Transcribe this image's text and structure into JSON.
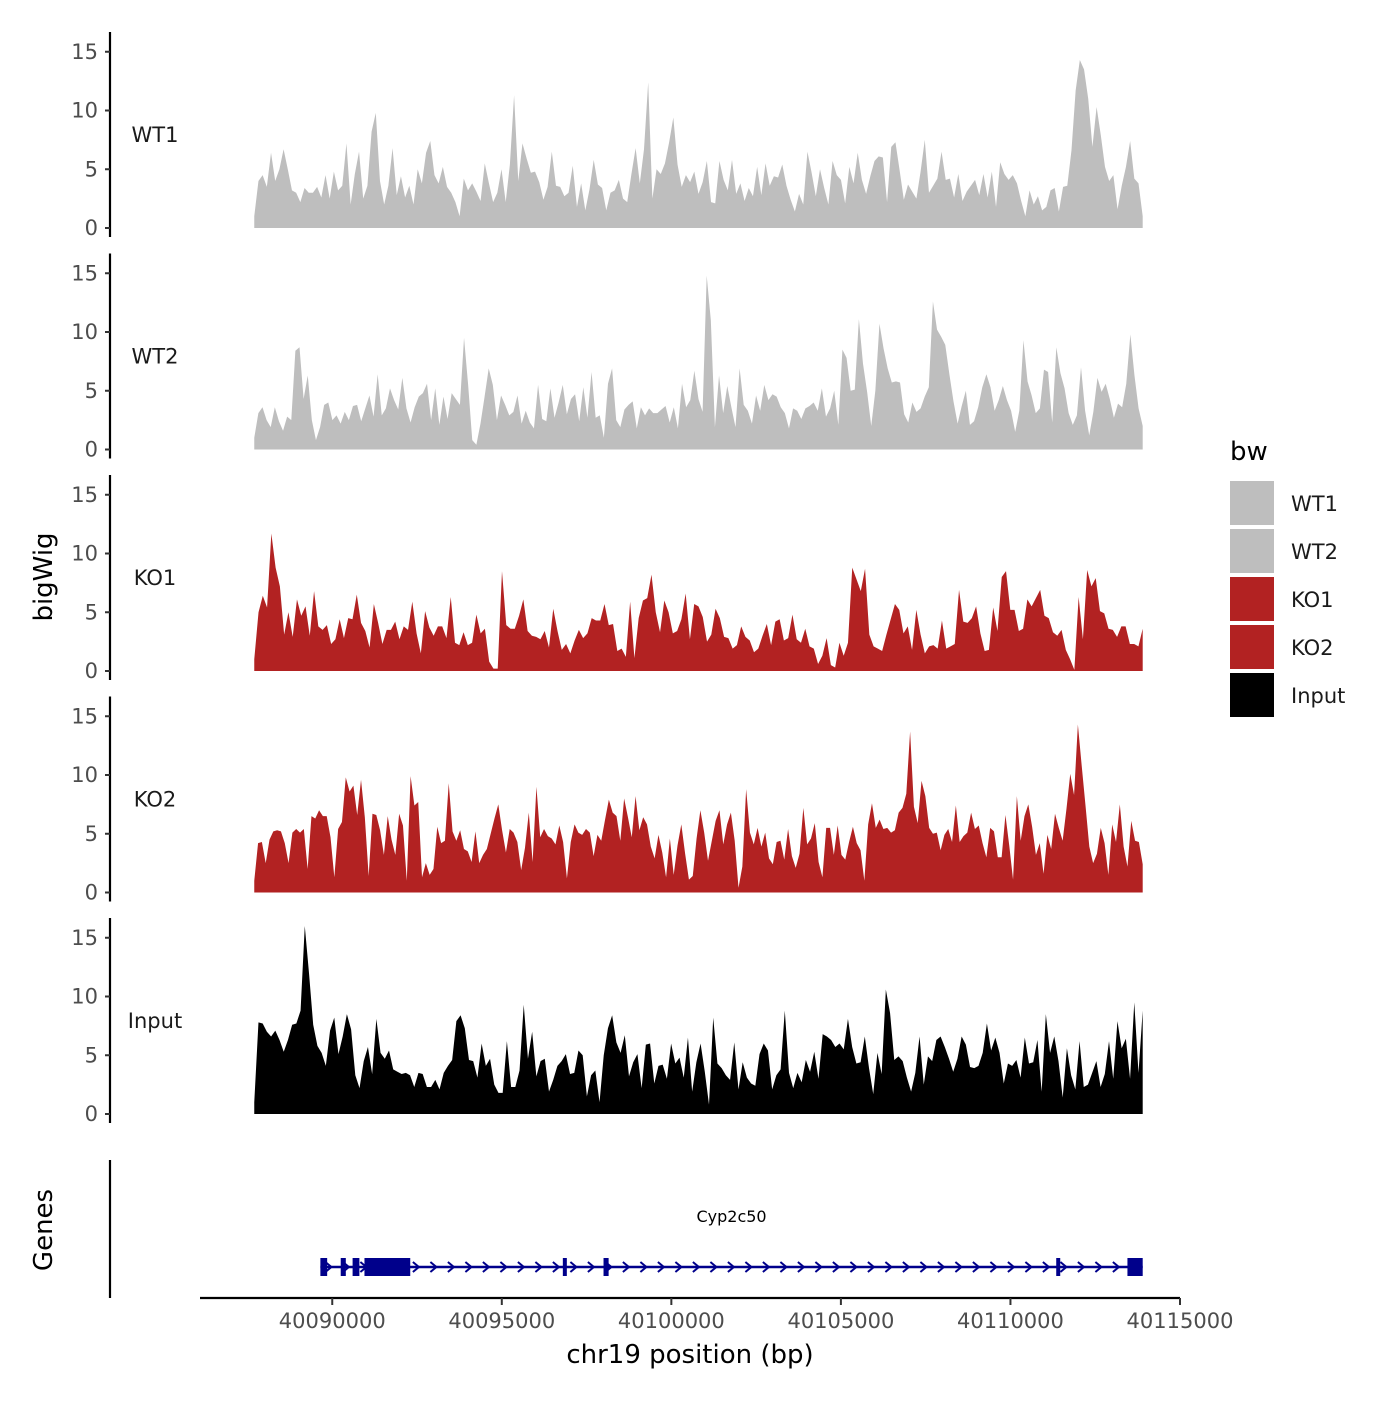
{
  "chart_data": {
    "type": "area",
    "subtype": "genome-browser-tracks",
    "title": "",
    "xlabel": "chr19 position (bp)",
    "ylabel": "bigWig",
    "gene_panel_label": "Genes",
    "xlim": [
      40086100,
      40115000
    ],
    "x_ticks": [
      40090000,
      40095000,
      40100000,
      40105000,
      40110000,
      40115000
    ],
    "x_tick_labels": [
      "40090000",
      "40095000",
      "40100000",
      "40105000",
      "40110000",
      "40115000"
    ],
    "ylim": [
      0,
      16
    ],
    "y_ticks": [
      0,
      5,
      10,
      15
    ],
    "y_tick_labels": [
      "0",
      "5",
      "10",
      "15"
    ],
    "data_range": [
      40087700,
      40113900
    ],
    "legend": {
      "title": "bw",
      "position": "right",
      "entries": [
        {
          "label": "WT1",
          "color": "#bebebe"
        },
        {
          "label": "WT2",
          "color": "#bebebe"
        },
        {
          "label": "KO1",
          "color": "#b22222"
        },
        {
          "label": "KO2",
          "color": "#b22222"
        },
        {
          "label": "Input",
          "color": "#000000"
        }
      ]
    },
    "series": [
      {
        "name": "WT1",
        "color": "#bebebe",
        "values": [
          1,
          4,
          4.5,
          3.5,
          6.4,
          4,
          5,
          6.7,
          5,
          3.2,
          3,
          2.2,
          3.4,
          3,
          3,
          3.5,
          2.6,
          4.5,
          2.5,
          4.8,
          3.2,
          3.6,
          7.2,
          2,
          4.6,
          6.5,
          2.5,
          3.6,
          8.2,
          9.8,
          4,
          2,
          3.6,
          6.8,
          2.8,
          4.4,
          2.6,
          3.6,
          2,
          5,
          3.8,
          6.4,
          7.4,
          4.5,
          3.8,
          5.2,
          3.5,
          3,
          2.2,
          1,
          4.2,
          3.2,
          3.8,
          3.1,
          2.3,
          5.5,
          3.8,
          2.2,
          3,
          5,
          2.2,
          5.4,
          11.3,
          4,
          7.2,
          5.9,
          4.7,
          4.8,
          3.9,
          2.4,
          3.5,
          6.5,
          3.6,
          3.5,
          2.7,
          3,
          5.3,
          1.8,
          3.8,
          1.5,
          3.3,
          5.8,
          3.7,
          3.4,
          1.5,
          3,
          3.2,
          4.1,
          2.5,
          2.2,
          4.6,
          6.8,
          3.8,
          6.7,
          12.4,
          2.5,
          5,
          4.6,
          5.5,
          7.3,
          9.4,
          5.4,
          3.5,
          4.5,
          3.9,
          4.8,
          2.9,
          3.9,
          5.7,
          2.2,
          2.1,
          5.7,
          4.1,
          3.2,
          5.8,
          2.9,
          3.8,
          2.3,
          3.4,
          2.7,
          5.2,
          2.8,
          5.5,
          3.6,
          4.4,
          4.3,
          5.4,
          3.6,
          2.4,
          1.4,
          2.9,
          2,
          6.5,
          4.7,
          2.7,
          5,
          3.4,
          2,
          5.7,
          4.5,
          4.1,
          2.1,
          5.2,
          3.8,
          6.4,
          4.1,
          2.9,
          4.4,
          5.7,
          6.1,
          6,
          2.2,
          6.9,
          7.3,
          4.9,
          2.4,
          3.7,
          3.1,
          2.5,
          4.8,
          7.5,
          3,
          3.6,
          4.2,
          6.5,
          4.1,
          4.2,
          2.6,
          4.6,
          2.3,
          3.1,
          3.6,
          4.1,
          2.8,
          4.6,
          2.6,
          4.8,
          1.8,
          5.6,
          4.6,
          4.1,
          4.5,
          3.8,
          2.3,
          1,
          3.2,
          2,
          2.7,
          1.5,
          1.8,
          3.2,
          3.4,
          1.4,
          3.5,
          3.6,
          6.6,
          11.7,
          14.3,
          13.5,
          11,
          6.9,
          10.3,
          7.9,
          5.2,
          4,
          4.5,
          1.6,
          3.6,
          5.2,
          7.4,
          4.2,
          3.8,
          1
        ]
      },
      {
        "name": "WT2",
        "color": "#bebebe",
        "values": [
          1,
          3.1,
          3.6,
          2.5,
          1.9,
          3.6,
          2.4,
          1.6,
          2.8,
          2.5,
          8.4,
          8.7,
          4.3,
          6.3,
          2.5,
          0.8,
          1.9,
          3.8,
          4,
          2.5,
          2.9,
          2.2,
          3.2,
          2.5,
          3.7,
          3.8,
          2.4,
          3.5,
          4.6,
          2.8,
          6.4,
          2.9,
          3.5,
          5.2,
          4.2,
          3.4,
          6.1,
          3.5,
          2.3,
          3.6,
          4.5,
          4.8,
          5.6,
          2.5,
          5.2,
          2.1,
          4.5,
          2.6,
          4.8,
          4.3,
          3.8,
          9.5,
          5.5,
          0.8,
          0.4,
          2.2,
          4.5,
          6.9,
          5.5,
          2.5,
          4.6,
          3.8,
          2.9,
          3.2,
          4.6,
          2.2,
          3.3,
          2.3,
          1.8,
          5.5,
          2.6,
          2.4,
          5.2,
          2.7,
          4,
          5.5,
          3,
          4.3,
          4.7,
          2.4,
          5.3,
          2.7,
          6.6,
          2.7,
          2.9,
          1,
          5.6,
          6.9,
          2.5,
          1.9,
          3.4,
          3.8,
          4.1,
          1.8,
          3.6,
          2.9,
          3.5,
          3.1,
          3.1,
          3.4,
          3.7,
          2.3,
          3.6,
          1.8,
          5.6,
          3.6,
          4.2,
          6.7,
          4.3,
          3.2,
          14.8,
          11,
          1.9,
          6.3,
          3.1,
          5.4,
          3.6,
          1.9,
          6.9,
          3.8,
          3.3,
          2.2,
          4.6,
          3.3,
          5.5,
          4.2,
          4.7,
          4.5,
          3.6,
          3.1,
          1.8,
          3.5,
          3.3,
          2.6,
          3.5,
          3.7,
          4,
          3.3,
          5.2,
          2.8,
          3.5,
          5,
          2.1,
          8.5,
          7.8,
          5,
          5.1,
          11.1,
          7.3,
          4.9,
          2,
          5,
          10.7,
          8.6,
          6.9,
          5.7,
          5.8,
          5.7,
          3,
          2.3,
          4,
          3.2,
          3.5,
          4.5,
          5.3,
          12.6,
          10.2,
          9.6,
          8.9,
          6.4,
          4.1,
          2.2,
          3.7,
          5,
          2.1,
          2.4,
          3.6,
          5.3,
          6.4,
          5.3,
          3.3,
          4.2,
          5.4,
          4.2,
          3.3,
          1.5,
          3.3,
          9.3,
          5.8,
          4.6,
          3.1,
          3.5,
          6.8,
          6.6,
          2.3,
          8.7,
          6.5,
          5.2,
          3.1,
          2.1,
          2.9,
          7,
          3.3,
          1.2,
          3.2,
          6.1,
          4.9,
          5.6,
          4.3,
          2.7,
          3.9,
          3.6,
          5.6,
          9.8,
          6.3,
          3.5,
          2
        ]
      },
      {
        "name": "KO1",
        "color": "#b22222",
        "values": [
          1,
          5,
          6.4,
          5.4,
          11.7,
          8.8,
          7.2,
          3.1,
          5,
          2.9,
          6.1,
          4.7,
          5.5,
          3,
          6.8,
          3.8,
          3.5,
          3.9,
          2.3,
          2.7,
          4.4,
          2.8,
          4.5,
          4.4,
          6.5,
          4.1,
          3.4,
          2,
          5.7,
          4.1,
          2.3,
          3.5,
          3.5,
          4.2,
          2.7,
          3.8,
          3.5,
          5.9,
          3.2,
          1.5,
          5.1,
          3.7,
          3,
          3.8,
          3.8,
          2.8,
          6.3,
          2.4,
          2.2,
          3.3,
          2.2,
          2.4,
          4.8,
          3.2,
          3.6,
          0.8,
          0.2,
          0.2,
          8.5,
          3.9,
          3.6,
          3.6,
          4.7,
          6.1,
          3.4,
          3,
          2.9,
          2.7,
          3.4,
          2,
          5.3,
          3.4,
          1.8,
          2.3,
          1.5,
          2.6,
          3.5,
          2.8,
          3.2,
          4.5,
          4.3,
          4.3,
          5.7,
          3.9,
          4,
          1.7,
          1.9,
          1.2,
          5.9,
          1.1,
          4.5,
          6,
          6.2,
          8.2,
          5,
          3.3,
          6,
          5,
          3.2,
          3.4,
          4.4,
          6.6,
          2.7,
          5.7,
          5.5,
          4.6,
          2.5,
          3.1,
          5.3,
          4.5,
          2.9,
          2.8,
          1.9,
          2.2,
          3.8,
          2.9,
          2.6,
          1.6,
          1.9,
          3,
          4,
          2.2,
          4.2,
          4.4,
          2.6,
          2.8,
          4.8,
          2.7,
          2.4,
          3.6,
          2.1,
          1.9,
          0.6,
          1.3,
          2.8,
          0.5,
          0.3,
          2.4,
          1.3,
          2.4,
          8.8,
          7.8,
          6.8,
          8.7,
          3.1,
          2.1,
          1.9,
          1.7,
          3.1,
          4.4,
          5.7,
          5.2,
          3.2,
          3.8,
          1.8,
          5.2,
          3.1,
          1.5,
          2.1,
          2.2,
          1.9,
          4.3,
          1.9,
          2.1,
          2.3,
          6.9,
          4.2,
          4.1,
          4.5,
          5.5,
          3.2,
          1.7,
          1.8,
          5.4,
          3.4,
          8,
          8.5,
          5.2,
          5.2,
          3.4,
          3.6,
          6.1,
          5.5,
          6.2,
          6.9,
          4.7,
          4.5,
          3.3,
          3,
          3.5,
          1.8,
          1,
          0.1,
          6.3,
          2.7,
          8.6,
          7.2,
          7.9,
          5.1,
          4.9,
          3.6,
          3.5,
          2.9,
          3.8,
          3.8,
          2.3,
          2.3,
          2.1,
          3.6
        ]
      },
      {
        "name": "KO2",
        "color": "#b22222",
        "values": [
          1,
          4.2,
          4.3,
          2.5,
          4.5,
          5.2,
          5.3,
          5.2,
          4.2,
          2.5,
          5.1,
          5.4,
          5.1,
          5.4,
          2,
          6.5,
          6.3,
          7,
          6.5,
          6.5,
          4.7,
          1.3,
          5.4,
          6,
          9.8,
          8.6,
          9.1,
          6.6,
          9.6,
          6.4,
          1.4,
          6.7,
          6.6,
          5.3,
          3.2,
          6.5,
          4.5,
          3.2,
          6.7,
          5.7,
          1,
          9.9,
          7.4,
          7.7,
          1.3,
          2.5,
          1.5,
          2,
          5.6,
          4.2,
          4.4,
          9.3,
          5.2,
          4.4,
          5.3,
          3.7,
          3.5,
          2.6,
          5.2,
          2.5,
          3.2,
          3.7,
          5,
          6.3,
          7.5,
          5.3,
          3.4,
          5.4,
          5.1,
          4.3,
          1.9,
          3.8,
          6.8,
          2.6,
          9,
          4.7,
          5.4,
          4.8,
          4.6,
          4.1,
          5.7,
          4.3,
          1.2,
          4.3,
          5.8,
          5.1,
          4.9,
          5.4,
          5.1,
          3.1,
          4.9,
          4.4,
          6.2,
          7.9,
          6.8,
          6.5,
          4.4,
          8,
          6.4,
          4.7,
          8.2,
          5.3,
          6.4,
          5.8,
          3.9,
          2.9,
          4.9,
          3.4,
          1.3,
          4.6,
          1.5,
          4,
          5.8,
          3.3,
          1.1,
          1.4,
          4.6,
          7,
          5.1,
          2.7,
          4.4,
          6.1,
          7,
          4.1,
          5.8,
          6.8,
          4.4,
          0.4,
          2.2,
          8.8,
          5.1,
          4.1,
          5.5,
          3.9,
          5.1,
          2.9,
          2.4,
          4.3,
          4.4,
          2.8,
          5.4,
          3.1,
          2.1,
          3.3,
          7.2,
          4.1,
          4.6,
          5.9,
          2.6,
          1.3,
          5.5,
          5.5,
          3.2,
          5.7,
          3.2,
          2.8,
          4.3,
          5.6,
          4.2,
          3.6,
          1,
          5.8,
          7.6,
          5.5,
          6.2,
          5.4,
          5.5,
          5.1,
          5.3,
          6.8,
          7.2,
          8.4,
          13.7,
          7.3,
          5.9,
          9.5,
          8.2,
          5.5,
          5,
          5.1,
          3.6,
          4.9,
          5.4,
          4.3,
          7.4,
          4.3,
          4.8,
          5.1,
          6.8,
          5.4,
          5.7,
          4.2,
          3,
          5.5,
          5.2,
          3,
          3,
          6.6,
          4,
          1.1,
          8.2,
          4.4,
          6.5,
          7.5,
          5.6,
          3.2,
          4.2,
          1.6,
          4.9,
          3.7,
          6.7,
          5.5,
          4.4,
          7.1,
          10.1,
          8.3,
          14.3,
          10.8,
          7.4,
          3.9,
          2.5,
          3.3,
          5.5,
          4.2,
          1.5,
          5.8,
          4.3,
          7.5,
          3.9,
          2.2,
          6.1,
          4.4,
          4.3,
          2.4
        ]
      },
      {
        "name": "Input",
        "color": "#000000",
        "values": [
          1,
          7.8,
          7.7,
          7,
          6.6,
          7.1,
          6.3,
          5.3,
          6.3,
          7.6,
          7.7,
          8.8,
          16,
          12,
          7.6,
          5.8,
          5.2,
          4.1,
          7.1,
          8.2,
          5.1,
          6.6,
          8.5,
          7.2,
          3.3,
          2.2,
          4.5,
          5.7,
          3.4,
          8.1,
          5.2,
          4.7,
          5.4,
          3.8,
          3.6,
          3.4,
          3.5,
          3.3,
          2.3,
          3.5,
          3.4,
          2.3,
          2.3,
          2.9,
          2.1,
          3.5,
          4.1,
          4.6,
          7.9,
          8.4,
          7.3,
          4.6,
          4.5,
          3.1,
          6,
          4.1,
          4.7,
          2.5,
          1.8,
          1.8,
          6.2,
          2.3,
          2.3,
          3.7,
          9.3,
          4.7,
          7,
          3.2,
          4.5,
          4.7,
          1.9,
          2.9,
          4.1,
          4.5,
          5.1,
          3.4,
          3.5,
          5.4,
          5,
          1.5,
          3.3,
          3.7,
          1,
          5,
          7.3,
          8.4,
          6.1,
          5.2,
          6.7,
          3.2,
          4.4,
          5.1,
          2.2,
          5.9,
          6,
          2.6,
          4.1,
          4.2,
          3,
          6,
          4.3,
          4.8,
          3.1,
          6.5,
          1.9,
          4.4,
          6,
          3.6,
          0.8,
          8.2,
          4.3,
          3.9,
          3.3,
          2.9,
          6.1,
          2.1,
          4.4,
          3.1,
          2.6,
          2.4,
          5.1,
          6,
          5.4,
          2.1,
          3.3,
          3.8,
          8.8,
          3.5,
          2.2,
          3.5,
          2.7,
          4.6,
          3.6,
          5.3,
          3,
          6.8,
          6.6,
          6.3,
          5.7,
          6,
          5.5,
          8.1,
          5.7,
          4.3,
          4.4,
          6.6,
          3.9,
          1.7,
          5.2,
          3.4,
          10.6,
          8.6,
          4.6,
          4.9,
          4.5,
          3.1,
          1.9,
          3.5,
          6.6,
          2.5,
          4.9,
          4.5,
          6.3,
          6.6,
          5.7,
          4.7,
          3.6,
          4.7,
          6.6,
          5.9,
          4,
          3.9,
          4.1,
          5.2,
          7.7,
          5.4,
          6.5,
          5.2,
          2.6,
          4.3,
          4.1,
          4.6,
          3.1,
          6.5,
          4.3,
          4.4,
          6.3,
          1.9,
          8.5,
          5.2,
          6.6,
          4.5,
          1.4,
          5.6,
          3.3,
          2.1,
          6.2,
          2.3,
          2.5,
          3.5,
          4.5,
          2.3,
          3.4,
          6.2,
          3,
          7.9,
          5.6,
          6.4,
          3,
          9.5,
          3.5,
          8.8
        ]
      }
    ],
    "gene": {
      "name": "Cyp2c50",
      "start": 40089650,
      "end": 40113900,
      "strand": "+",
      "color": "#00008b",
      "exons": [
        [
          40089650,
          40089850
        ],
        [
          40090250,
          40090400
        ],
        [
          40090600,
          40090800
        ],
        [
          40090950,
          40092300
        ],
        [
          40096800,
          40096900
        ],
        [
          40098000,
          40098150
        ],
        [
          40111350,
          40111450
        ],
        [
          40113450,
          40113900
        ]
      ]
    }
  }
}
